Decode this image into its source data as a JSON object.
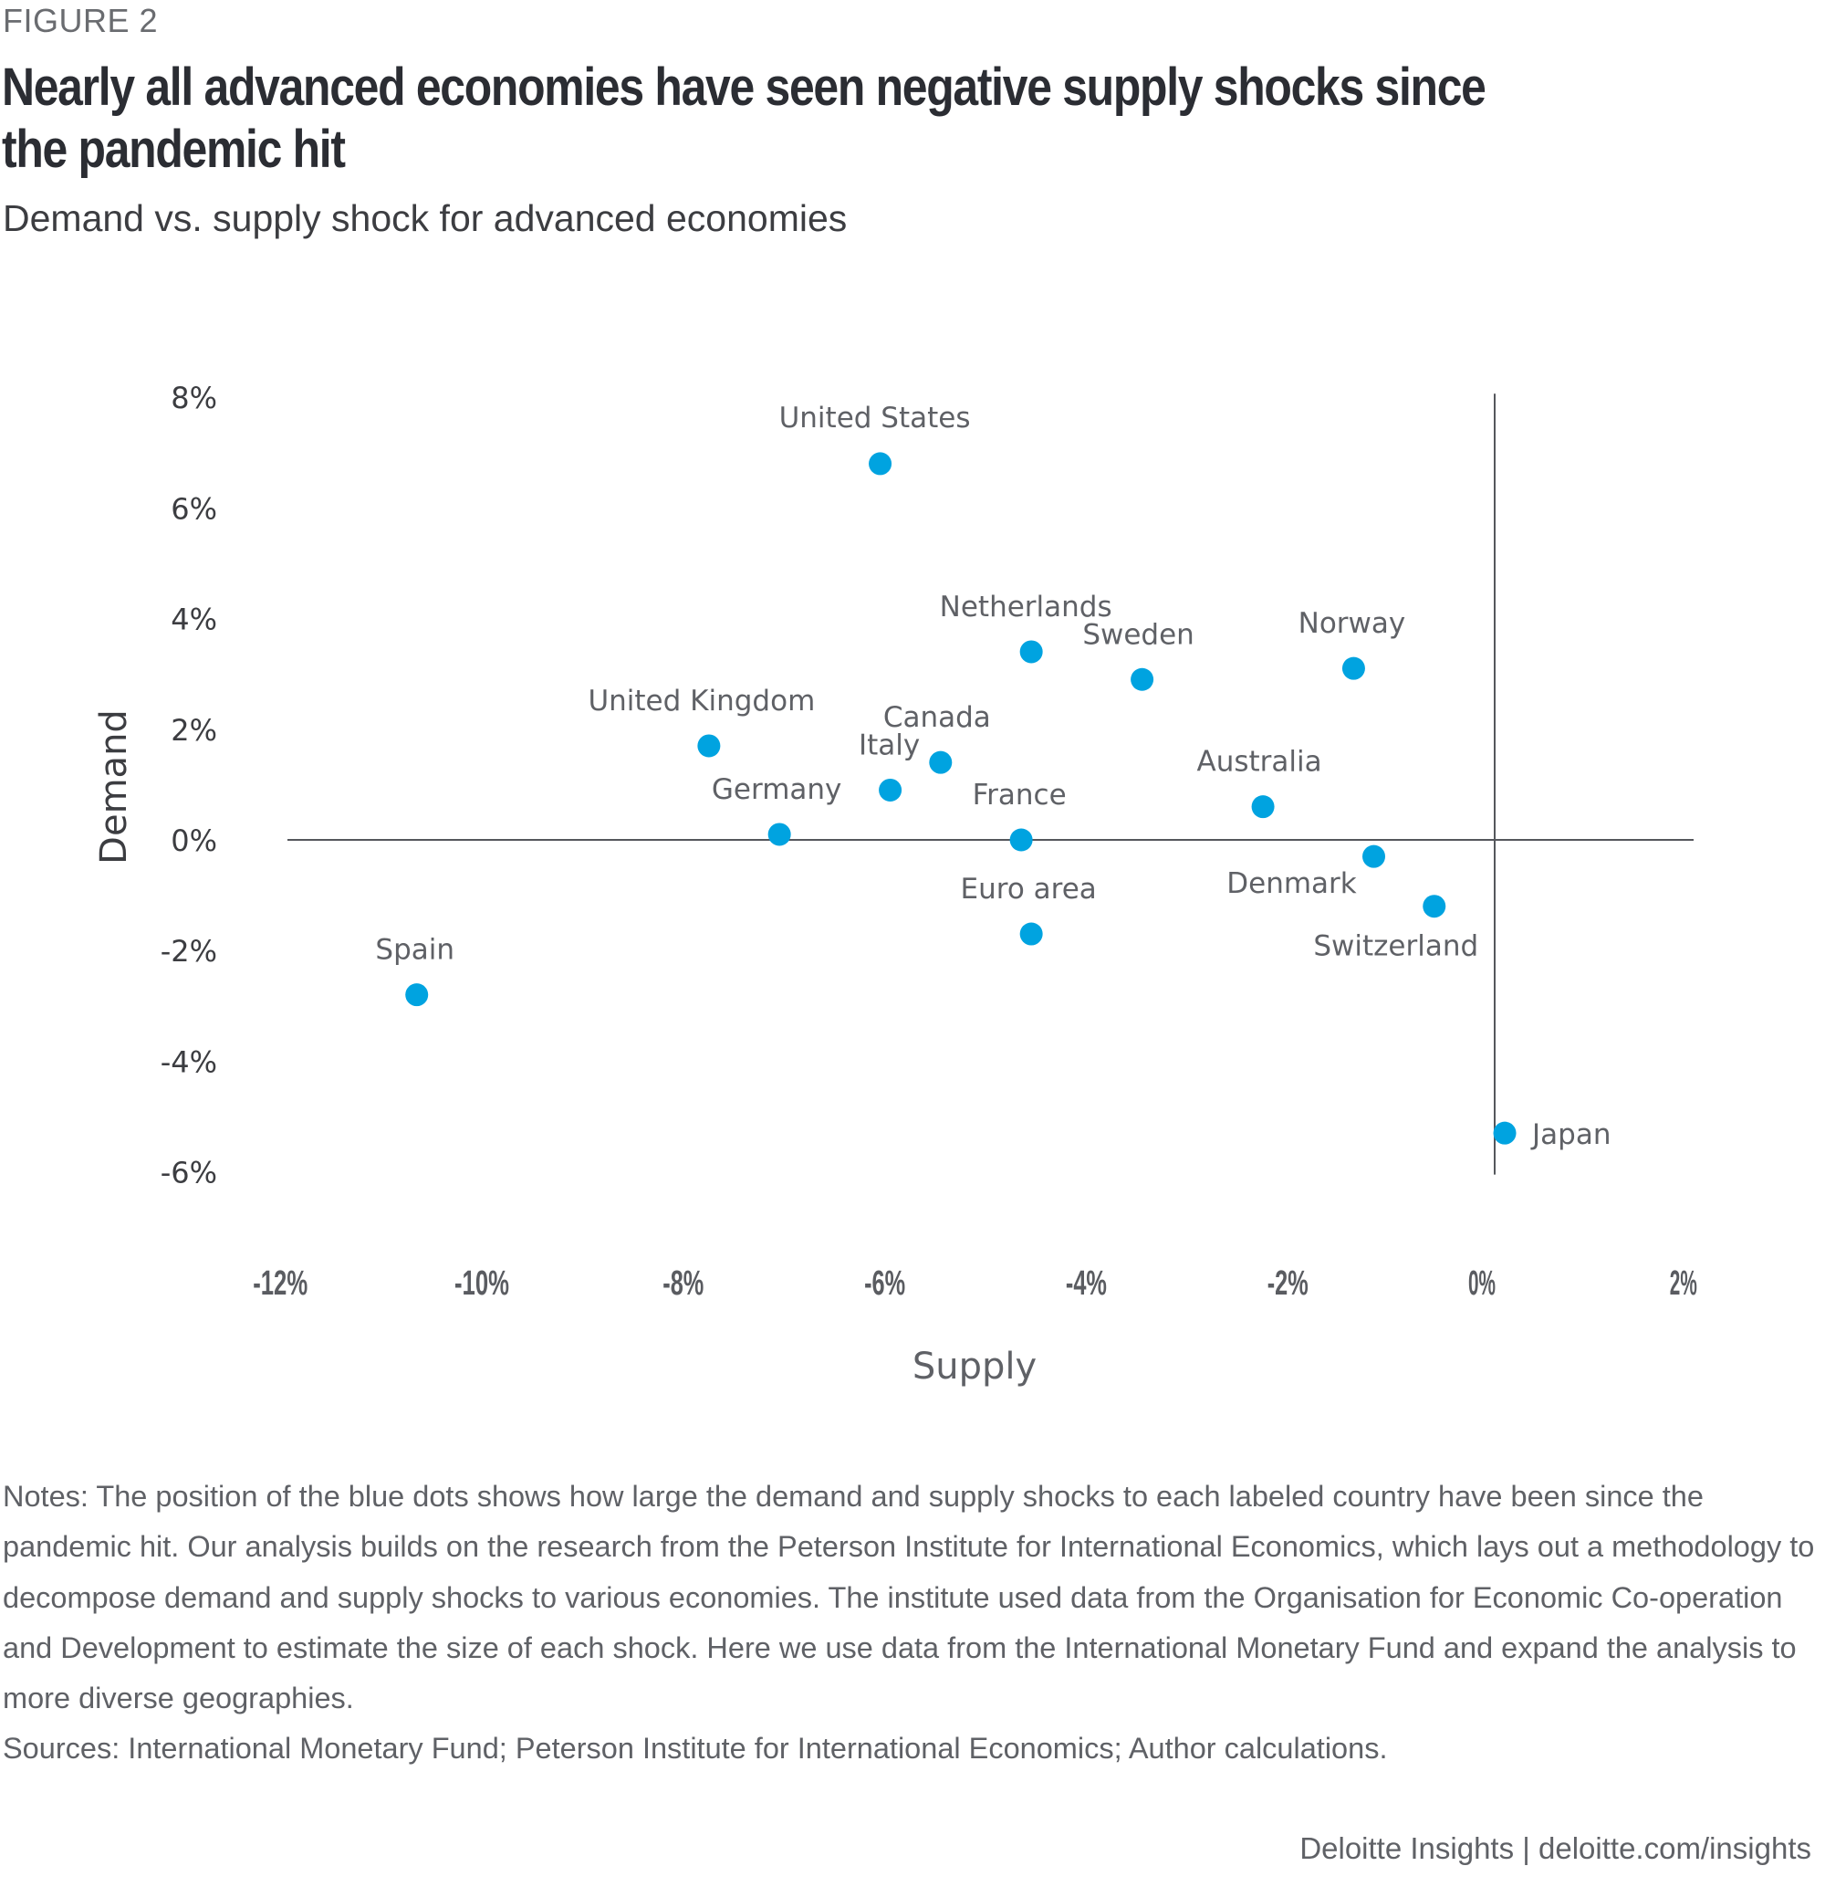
{
  "figure_label": "FIGURE 2",
  "title": "Nearly all advanced economies have seen negative supply shocks since the pandemic hit",
  "subtitle": "Demand vs. supply shock for advanced economies",
  "notes": "Notes: The position of the blue dots shows how large the demand and supply shocks to each labeled country have been since the pandemic hit. Our analysis builds on the research from the Peterson Institute for International Economics, which lays out a methodology to decompose demand and supply shocks to various economies. The institute used data from the Organisation for Economic Co-operation and Development to estimate the size of each shock. Here we use data from the International Monetary Fund and expand the analysis to more diverse geographies.",
  "sources": "Sources: International Monetary Fund; Peterson Institute for International Economics; Author calculations.",
  "footer": "Deloitte Insights | deloitte.com/insights",
  "colors": {
    "dot": "#00A3E0",
    "axis_line": "#55575c",
    "text": "#3c3d41",
    "label": "#5f6166"
  },
  "chart_data": {
    "type": "scatter",
    "title": "Demand vs. supply shock for advanced economies",
    "xlabel": "Supply",
    "ylabel": "Demand",
    "xlim": [
      -12,
      2
    ],
    "ylim": [
      -6,
      8
    ],
    "x_ticks": [
      -12,
      -10,
      -8,
      -6,
      -4,
      -2,
      0,
      2
    ],
    "x_tick_labels": [
      "-12%",
      "-10%",
      "-8%",
      "-6%",
      "-4%",
      "-2%",
      "0%",
      "2%"
    ],
    "y_ticks": [
      8,
      6,
      4,
      2,
      0,
      -2,
      -4,
      -6
    ],
    "y_tick_labels": [
      "8%",
      "6%",
      "4%",
      "2%",
      "0%",
      "-2%",
      "-4%",
      "-6%"
    ],
    "grid": false,
    "legend": "none",
    "points": [
      {
        "label": "United States",
        "x": -6.1,
        "y": 6.8,
        "label_pos": "above"
      },
      {
        "label": "Netherlands",
        "x": -4.6,
        "y": 3.4,
        "label_pos": "above"
      },
      {
        "label": "Sweden",
        "x": -3.5,
        "y": 2.9,
        "label_pos": "above"
      },
      {
        "label": "Norway",
        "x": -1.4,
        "y": 3.1,
        "label_pos": "above"
      },
      {
        "label": "United Kingdom",
        "x": -7.8,
        "y": 1.7,
        "label_pos": "above"
      },
      {
        "label": "Canada",
        "x": -5.5,
        "y": 1.4,
        "label_pos": "above"
      },
      {
        "label": "Italy",
        "x": -6.0,
        "y": 0.9,
        "label_pos": "above"
      },
      {
        "label": "Australia",
        "x": -2.3,
        "y": 0.6,
        "label_pos": "above"
      },
      {
        "label": "Germany",
        "x": -7.1,
        "y": 0.1,
        "label_pos": "above"
      },
      {
        "label": "France",
        "x": -4.7,
        "y": 0.0,
        "label_pos": "above"
      },
      {
        "label": "Denmark",
        "x": -1.2,
        "y": -0.3,
        "label_pos": "below-left"
      },
      {
        "label": "Switzerland",
        "x": -0.6,
        "y": -1.2,
        "label_pos": "below-left"
      },
      {
        "label": "Euro area",
        "x": -4.6,
        "y": -1.7,
        "label_pos": "above"
      },
      {
        "label": "Spain",
        "x": -10.7,
        "y": -2.8,
        "label_pos": "above"
      },
      {
        "label": "Japan",
        "x": 0.1,
        "y": -5.3,
        "label_pos": "right"
      }
    ]
  }
}
